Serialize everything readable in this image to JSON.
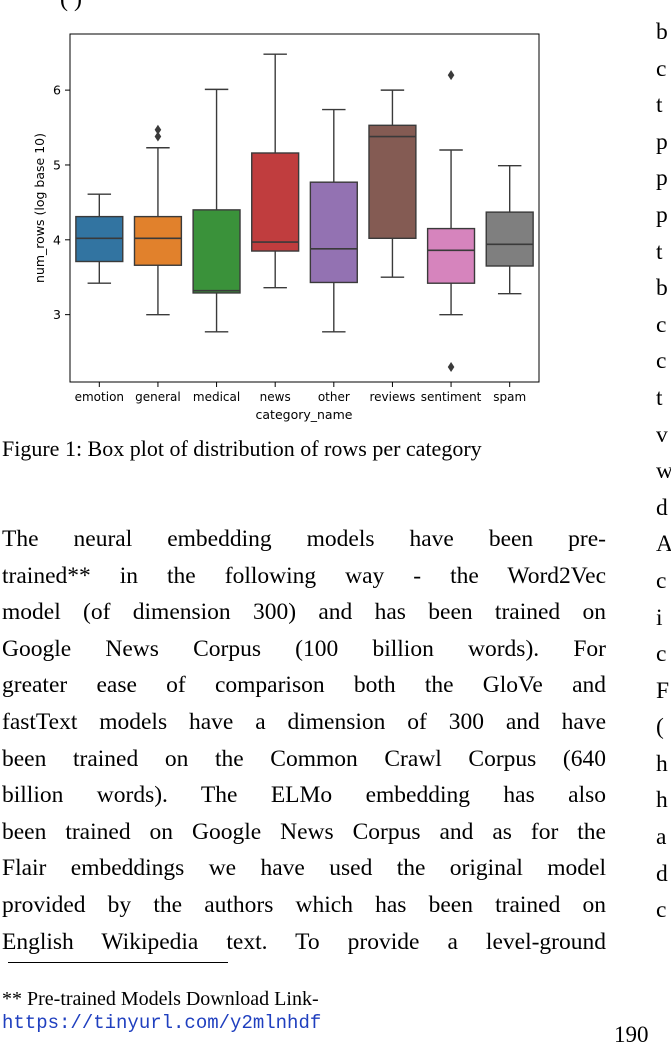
{
  "top_fragment": "(  )",
  "chart_data": {
    "type": "box",
    "xlabel": "category_name",
    "ylabel": "num_rows (log base 10)",
    "ylim": [
      2.1,
      6.75
    ],
    "yticks": [
      3,
      4,
      5,
      6
    ],
    "categories": [
      "emotion",
      "general",
      "medical",
      "news",
      "other",
      "reviews",
      "sentiment",
      "spam"
    ],
    "series": [
      {
        "category": "emotion",
        "color": "#3274a1",
        "whisker_low": 3.42,
        "q1": 3.71,
        "median": 4.02,
        "q3": 4.31,
        "whisker_high": 4.61,
        "outliers": []
      },
      {
        "category": "general",
        "color": "#e1812c",
        "whisker_low": 3.0,
        "q1": 3.66,
        "median": 4.02,
        "q3": 4.31,
        "whisker_high": 5.23,
        "outliers": [
          5.38,
          5.47
        ]
      },
      {
        "category": "medical",
        "color": "#3a923a",
        "whisker_low": 2.77,
        "q1": 3.29,
        "median": 3.32,
        "q3": 4.4,
        "whisker_high": 6.01,
        "outliers": []
      },
      {
        "category": "news",
        "color": "#c03d3e",
        "whisker_low": 3.36,
        "q1": 3.85,
        "median": 3.97,
        "q3": 5.16,
        "whisker_high": 6.48,
        "outliers": []
      },
      {
        "category": "other",
        "color": "#9372b2",
        "whisker_low": 2.77,
        "q1": 3.43,
        "median": 3.88,
        "q3": 4.77,
        "whisker_high": 5.74,
        "outliers": []
      },
      {
        "category": "reviews",
        "color": "#845b53",
        "whisker_low": 3.5,
        "q1": 4.02,
        "median": 5.38,
        "q3": 5.53,
        "whisker_high": 6.0,
        "outliers": []
      },
      {
        "category": "sentiment",
        "color": "#d684bd",
        "whisker_low": 3.0,
        "q1": 3.42,
        "median": 3.86,
        "q3": 4.15,
        "whisker_high": 5.2,
        "outliers": [
          6.2,
          2.3
        ]
      },
      {
        "category": "spam",
        "color": "#7f7f7f",
        "whisker_low": 3.28,
        "q1": 3.65,
        "median": 3.94,
        "q3": 4.37,
        "whisker_high": 4.99,
        "outliers": []
      }
    ]
  },
  "caption": "Figure 1: Box plot of distribution of rows per category",
  "body_lines": [
    "The neural embedding models have been pre-",
    "trained** in the following way - the Word2Vec",
    "model (of dimension 300) and has been trained on",
    "Google News Corpus (100 billion words). For",
    "greater ease of comparison both the GloVe and",
    "fastText models have a dimension of 300 and have",
    "been trained on the Common Crawl Corpus (640",
    "billion words). The ELMo embedding has also",
    "been trained on Google News Corpus and as for the",
    "Flair embeddings we have used the original model",
    "provided by the authors which has been trained on",
    "English Wikipedia text. To provide a level-ground"
  ],
  "footnote": {
    "label": "** Pre-trained Models Download Link-",
    "link": "https://tinyurl.com/y2mlnhdf"
  },
  "page_number": "190",
  "right_column_letters": [
    "b",
    "c",
    "t",
    "p",
    "p",
    "p",
    "t",
    "b",
    "c",
    "c",
    "t",
    "v",
    "w",
    "d",
    "A",
    "c",
    "i",
    "c",
    "F",
    "(",
    "h",
    "h",
    "a",
    "d",
    "c"
  ]
}
